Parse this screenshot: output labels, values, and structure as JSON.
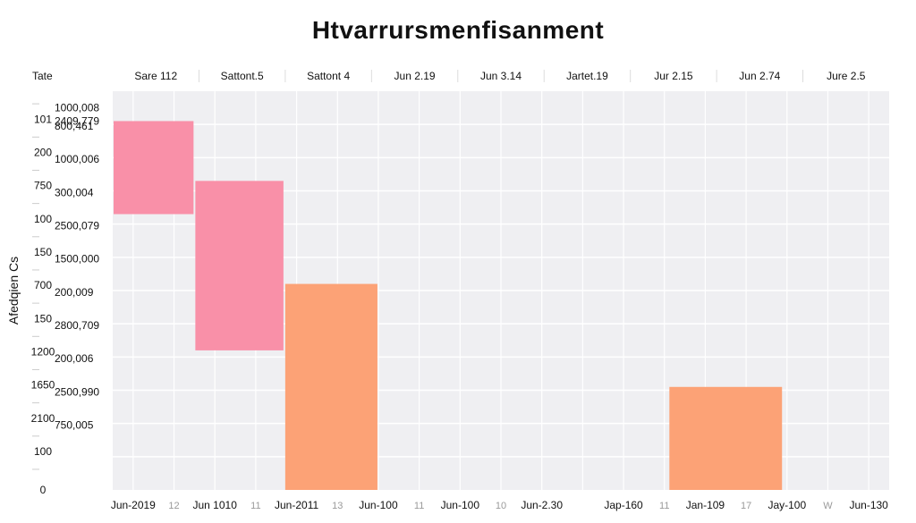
{
  "chart_data": {
    "type": "bar",
    "title": "Htvarrursmenfisanment",
    "ylabel": "Afedqien Cs",
    "top_axis": {
      "label": "Tate",
      "ticks": [
        "Sare 112",
        "Sattont.5",
        "Sattont 4",
        "Jun 2.19",
        "Jun 3.14",
        "Jartet.19",
        "Jur 2.15",
        "Jun 2.74",
        "Jure 2.5"
      ]
    },
    "x_axis": {
      "ticks": [
        "Jun-2019",
        "12",
        "Jun 1010",
        "11",
        "Jun-2011",
        "13",
        "Jun-100",
        "11",
        "Jun-100",
        "10",
        "Jun-2.30",
        "",
        "Jap-160",
        "11",
        "Jan-109",
        "17",
        "Jay-100",
        "W",
        "Jun-130"
      ],
      "faint": [
        false,
        true,
        false,
        true,
        false,
        true,
        false,
        true,
        false,
        true,
        false,
        true,
        false,
        true,
        false,
        true,
        false,
        true,
        false
      ]
    },
    "y_axis": {
      "outer_ticks": [
        "101",
        "200",
        "750",
        "100",
        "150",
        "700",
        "150",
        "1200",
        "1650",
        "2100",
        "100",
        "0"
      ],
      "inner_ticks": [
        "1000,008",
        "2409.779",
        "800,461",
        "1000,006",
        "300,004",
        "2500,079",
        "1500,000",
        "200,009",
        "2800,709",
        "200,006",
        "2500,990",
        "750,005"
      ]
    },
    "grid": true,
    "x_domain": [
      0,
      19
    ],
    "y_domain": [
      0,
      12
    ],
    "bars": [
      {
        "x_start": 0,
        "x_end": 2,
        "y_top": 11.1,
        "y_bottom": 8.3,
        "color": "#f990a8"
      },
      {
        "x_start": 2,
        "x_end": 4.2,
        "y_top": 9.3,
        "y_bottom": 4.2,
        "color": "#f990a8"
      },
      {
        "x_start": 4.2,
        "x_end": 6.5,
        "y_top": 6.2,
        "y_bottom": 0,
        "color": "#fca276"
      },
      {
        "x_start": 13.6,
        "x_end": 16.4,
        "y_top": 3.1,
        "y_bottom": 0,
        "color": "#fca276"
      }
    ]
  }
}
